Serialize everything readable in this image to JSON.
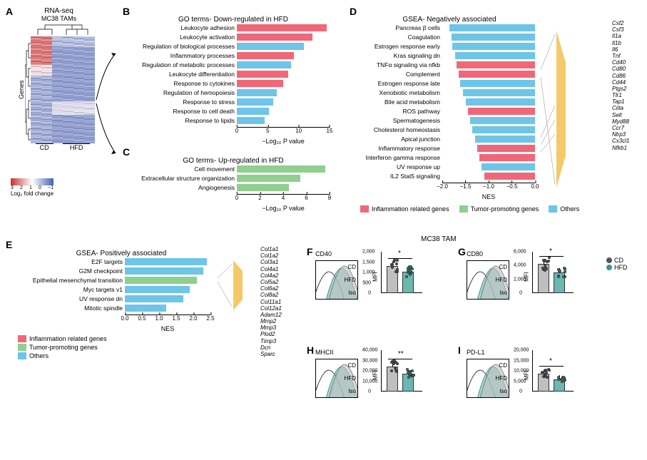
{
  "colors": {
    "inflammation": "#f06878",
    "tumor": "#8fcf8f",
    "others": "#6ec5e8",
    "cd_fill": "#bfbfbf",
    "hfd_fill": "#6cb8b0",
    "cd_dot": "#555555",
    "hfd_dot": "#3a9890",
    "heat_low": "#4a5fb0",
    "heat_mid": "#f0f0f5",
    "heat_high": "#c93030"
  },
  "panelA": {
    "title": "RNA-seq",
    "subtitle": "MC38 TAMs",
    "ylabel": "Genes",
    "xlabels": [
      "CD",
      "HFD"
    ],
    "gradient_ticks": [
      "3",
      "2",
      "1",
      "0",
      "−1"
    ],
    "gradient_label": "Log₂ fold change"
  },
  "panelB": {
    "title": "GO terms- Down-regulated in HFD",
    "xlabel": "−Log₁₀ P value",
    "xlim": [
      0,
      15
    ],
    "xtick_step": 5,
    "label_width": 160,
    "bars": [
      {
        "label": "Leukocyte adhesion",
        "value": 14.5,
        "color": "inflammation"
      },
      {
        "label": "Leukocyte activation",
        "value": 12.2,
        "color": "inflammation"
      },
      {
        "label": "Regulation of biological processes",
        "value": 10.8,
        "color": "others"
      },
      {
        "label": "Inflammatory processes",
        "value": 9.2,
        "color": "inflammation"
      },
      {
        "label": "Regulation of metabolic processes",
        "value": 8.8,
        "color": "others"
      },
      {
        "label": "Leukocyte differentiation",
        "value": 8.3,
        "color": "inflammation"
      },
      {
        "label": "Response to cytokines",
        "value": 7.5,
        "color": "inflammation"
      },
      {
        "label": "Regulation of hemopoiesis",
        "value": 6.5,
        "color": "others"
      },
      {
        "label": "Response to stress",
        "value": 5.9,
        "color": "others"
      },
      {
        "label": "Response to cell death",
        "value": 5.2,
        "color": "others"
      },
      {
        "label": "Response to lipids",
        "value": 4.5,
        "color": "others"
      }
    ]
  },
  "panelC": {
    "title": "GO terms- Up-regulated in HFD",
    "xlabel": "−Log₁₀ P value",
    "xlim": [
      0,
      8
    ],
    "xtick_step": 2,
    "label_width": 160,
    "bars": [
      {
        "label": "Cell movement",
        "value": 7.6,
        "color": "tumor"
      },
      {
        "label": "Extracellular structure organization",
        "value": 5.5,
        "color": "tumor"
      },
      {
        "label": "Angiogenesis",
        "value": 4.5,
        "color": "tumor"
      }
    ]
  },
  "panelD": {
    "title": "GSEA- Negatively associated",
    "xlabel": "NES",
    "xlim": [
      -2.0,
      0.0
    ],
    "xticks": [
      "−2.0",
      "−1.5",
      "−1.0",
      "−0.5",
      "0.0"
    ],
    "label_width": 115,
    "bars": [
      {
        "label": "Pancreas β cells",
        "value": -1.85,
        "color": "others"
      },
      {
        "label": "Coagulation",
        "value": -1.8,
        "color": "others"
      },
      {
        "label": "Estrogen response early",
        "value": -1.78,
        "color": "others"
      },
      {
        "label": "Kras signaling dn",
        "value": -1.72,
        "color": "others"
      },
      {
        "label": "TNFα signaling via nfkb",
        "value": -1.7,
        "color": "inflammation"
      },
      {
        "label": "Complement",
        "value": -1.65,
        "color": "inflammation"
      },
      {
        "label": "Estrogen response late",
        "value": -1.62,
        "color": "others"
      },
      {
        "label": "Xenobiotic metabolism",
        "value": -1.55,
        "color": "others"
      },
      {
        "label": "Bile acid metabolism",
        "value": -1.5,
        "color": "others"
      },
      {
        "label": "ROS pathway",
        "value": -1.45,
        "color": "inflammation"
      },
      {
        "label": "Spermatogenesis",
        "value": -1.4,
        "color": "others"
      },
      {
        "label": "Cholesterol homeostasis",
        "value": -1.35,
        "color": "others"
      },
      {
        "label": "Apical junction",
        "value": -1.3,
        "color": "others"
      },
      {
        "label": "Inflammatory response",
        "value": -1.25,
        "color": "inflammation"
      },
      {
        "label": "Interferon gamma response",
        "value": -1.2,
        "color": "inflammation"
      },
      {
        "label": "UV response up",
        "value": -1.15,
        "color": "others"
      },
      {
        "label": "IL2 Stat5 signaling",
        "value": -1.1,
        "color": "inflammation"
      }
    ],
    "genes": [
      "Csf2",
      "Csf3",
      "Il1a",
      "Il1b",
      "Il6",
      "Tnf",
      "Cd40",
      "Cd80",
      "Cd86",
      "Cd44",
      "Ptgs2",
      "Tlr1",
      "Tap1",
      "Ciita",
      "Sell",
      "Myd88",
      "Ccr7",
      "Nlrp3",
      "Cx3cl1",
      "Nfkb1"
    ]
  },
  "panelE": {
    "title": "GSEA- Positively associated",
    "xlabel": "NES",
    "xlim": [
      0,
      2.5
    ],
    "xticks": [
      "0.0",
      "0.5",
      "1.0",
      "1.5",
      "2.0",
      "2.5"
    ],
    "label_width": 150,
    "bars": [
      {
        "label": "E2F targets",
        "value": 2.4,
        "color": "others"
      },
      {
        "label": "G2M checkpoint",
        "value": 2.3,
        "color": "others"
      },
      {
        "label": "Epithelial mesenchymal transition",
        "value": 2.1,
        "color": "tumor"
      },
      {
        "label": "Myc targets v1",
        "value": 1.9,
        "color": "others"
      },
      {
        "label": "UV response dn",
        "value": 1.7,
        "color": "others"
      },
      {
        "label": "Mitotic spindle",
        "value": 1.2,
        "color": "others"
      }
    ],
    "genes": [
      "Col1a1",
      "Col1a2",
      "Col3a1",
      "Col4a1",
      "Col4a2",
      "Col5a2",
      "Col6a2",
      "Col8a2",
      "Col11a1",
      "Col12a1",
      "Adam12",
      "Mmp2",
      "Mmp3",
      "Plod2",
      "Timp3",
      "Dcn",
      "Sparc"
    ]
  },
  "legend_cat": {
    "inflammation": "Inflammation related genes",
    "tumor": "Tumor-promoting genes",
    "others": "Others"
  },
  "tam_header": "MC38 TAM",
  "panelsFI": [
    {
      "id": "F",
      "title": "CD40",
      "ylim": [
        0,
        2000
      ],
      "yticks": [
        0,
        500,
        1000,
        1500,
        2000
      ],
      "cd": 1300,
      "hfd": 1050,
      "sig": "*"
    },
    {
      "id": "G",
      "title": "CD80",
      "ylim": [
        0,
        6000
      ],
      "yticks": [
        0,
        2000,
        4000,
        6000
      ],
      "cd": 4200,
      "hfd": 3000,
      "sig": "*"
    },
    {
      "id": "H",
      "title": "MHCII",
      "ylim": [
        0,
        40000
      ],
      "yticks": [
        0,
        10000,
        20000,
        30000,
        40000
      ],
      "cd": 24000,
      "hfd": 17000,
      "sig": "**"
    },
    {
      "id": "I",
      "title": "PD-L1",
      "ylim": [
        0,
        20000
      ],
      "yticks": [
        0,
        5000,
        10000,
        15000,
        20000
      ],
      "cd": 8500,
      "hfd": 6000,
      "sig": "*"
    }
  ],
  "facs_labels": {
    "MFI": "MFI",
    "cd": "CD",
    "hfd": "HFD",
    "iso": "Iso"
  },
  "condition_legend": {
    "cd": "CD",
    "hfd": "HFD"
  }
}
